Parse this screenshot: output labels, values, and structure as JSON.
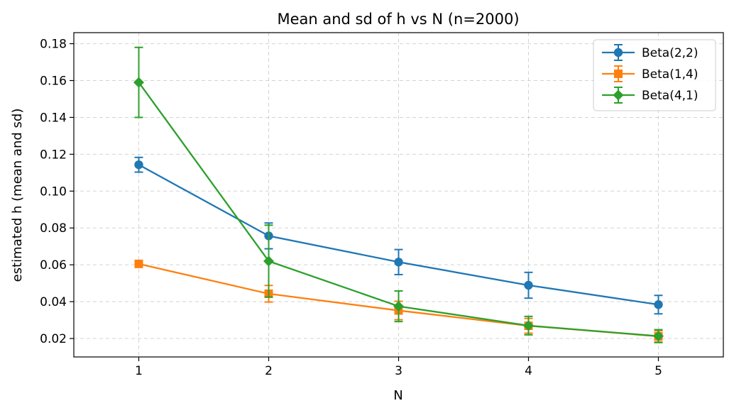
{
  "chart_data": {
    "type": "line",
    "title": "Mean and sd of h vs N (n=2000)",
    "xlabel": "N",
    "ylabel": "estimated h (mean and sd)",
    "x": [
      1,
      2,
      3,
      4,
      5
    ],
    "xlim": [
      0.5,
      5.5
    ],
    "ylim": [
      0.01,
      0.186
    ],
    "xticks": [
      1,
      2,
      3,
      4,
      5
    ],
    "yticks": [
      0.02,
      0.04,
      0.06,
      0.08,
      0.1,
      0.12,
      0.14,
      0.16,
      0.18
    ],
    "ytick_labels": [
      "0.02",
      "0.04",
      "0.06",
      "0.08",
      "0.10",
      "0.12",
      "0.14",
      "0.16",
      "0.18"
    ],
    "grid": true,
    "legend_position": "top-right",
    "error_bars": "sd",
    "series": [
      {
        "name": "Beta(2,2)",
        "color": "#1f77b4",
        "marker": "circle",
        "values": [
          0.1143,
          0.0757,
          0.0615,
          0.0489,
          0.0384
        ],
        "sd": [
          0.004,
          0.007,
          0.0068,
          0.007,
          0.005
        ]
      },
      {
        "name": "Beta(1,4)",
        "color": "#ff7f0e",
        "marker": "square",
        "values": [
          0.0605,
          0.0443,
          0.0352,
          0.0269,
          0.0212
        ],
        "sd": [
          0.0015,
          0.0045,
          0.005,
          0.004,
          0.003
        ]
      },
      {
        "name": "Beta(4,1)",
        "color": "#2ca02c",
        "marker": "diamond",
        "values": [
          0.159,
          0.062,
          0.0375,
          0.027,
          0.0213
        ],
        "sd": [
          0.019,
          0.0195,
          0.0083,
          0.005,
          0.0035
        ]
      }
    ]
  }
}
